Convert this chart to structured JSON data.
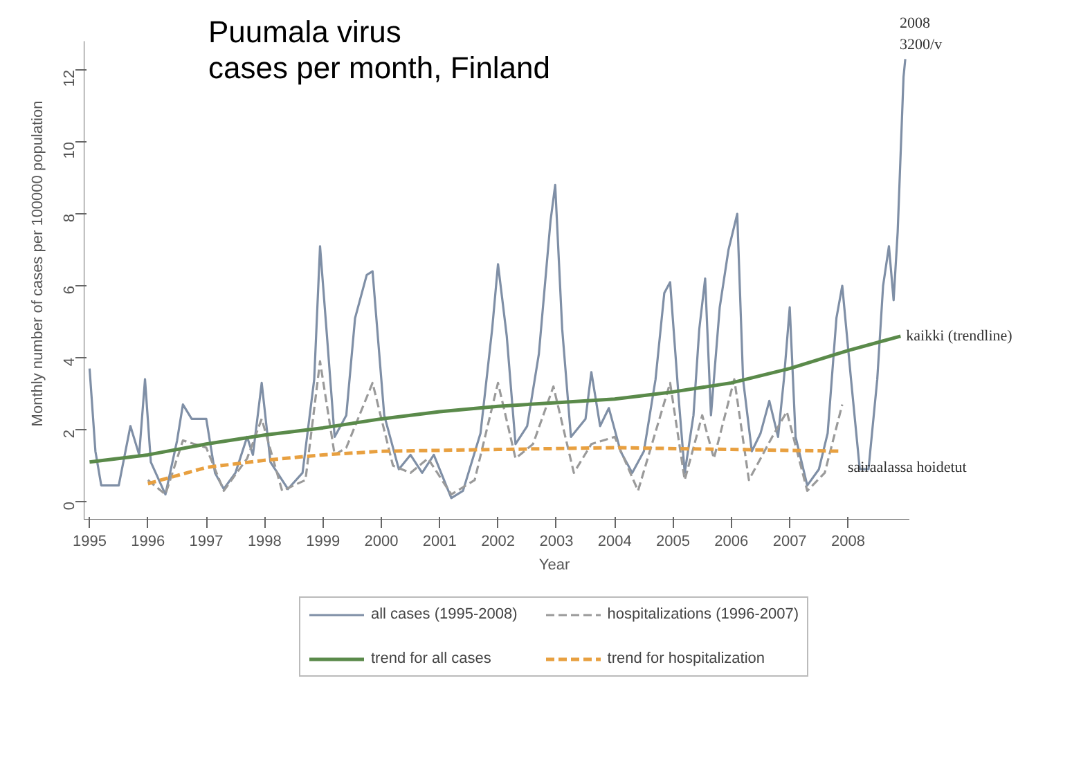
{
  "chart_data": {
    "type": "line",
    "title": "Puumala virus\ncases per month, Finland",
    "xlabel": "Year",
    "ylabel": "Monthly number of cases per 100000 population",
    "xlim": [
      1994.9,
      2009.05
    ],
    "ylim": [
      -0.5,
      12.8
    ],
    "xticks": [
      1995,
      1996,
      1997,
      1998,
      1999,
      2000,
      2001,
      2002,
      2003,
      2004,
      2005,
      2006,
      2007,
      2008
    ],
    "yticks": [
      0,
      2,
      4,
      6,
      8,
      10,
      12
    ],
    "grid": false,
    "legend": "bottom",
    "series": [
      {
        "name": "all cases (1995-2008)",
        "color": "#7f8fa6",
        "line_style": "solid",
        "x": [
          1995.0,
          1995.1,
          1995.2,
          1995.5,
          1995.7,
          1995.85,
          1995.95,
          1996.05,
          1996.3,
          1996.5,
          1996.6,
          1996.75,
          1997.0,
          1997.15,
          1997.3,
          1997.5,
          1997.7,
          1997.8,
          1997.95,
          1998.1,
          1998.4,
          1998.65,
          1998.85,
          1998.95,
          1999.05,
          1999.2,
          1999.4,
          1999.55,
          1999.75,
          1999.85,
          2000.05,
          2000.3,
          2000.5,
          2000.7,
          2000.9,
          2001.2,
          2001.4,
          2001.7,
          2001.9,
          2002.0,
          2002.15,
          2002.3,
          2002.5,
          2002.7,
          2002.9,
          2002.98,
          2003.1,
          2003.25,
          2003.5,
          2003.6,
          2003.75,
          2003.9,
          2004.1,
          2004.3,
          2004.5,
          2004.7,
          2004.85,
          2004.95,
          2005.1,
          2005.2,
          2005.35,
          2005.45,
          2005.55,
          2005.65,
          2005.8,
          2005.95,
          2006.1,
          2006.2,
          2006.35,
          2006.5,
          2006.65,
          2006.8,
          2006.9,
          2007.0,
          2007.1,
          2007.3,
          2007.5,
          2007.65,
          2007.8,
          2007.9,
          2008.05,
          2008.2,
          2008.35,
          2008.5,
          2008.6,
          2008.7,
          2008.78,
          2008.85,
          2008.95,
          2008.98
        ],
        "values": [
          3.7,
          1.4,
          0.45,
          0.45,
          2.1,
          1.3,
          3.4,
          1.1,
          0.2,
          1.7,
          2.7,
          2.3,
          2.3,
          0.8,
          0.35,
          0.8,
          1.8,
          1.3,
          3.3,
          1.1,
          0.35,
          0.8,
          3.4,
          7.1,
          5.0,
          1.8,
          2.4,
          5.1,
          6.3,
          6.4,
          2.4,
          0.9,
          1.3,
          0.8,
          1.3,
          0.1,
          0.3,
          1.9,
          4.8,
          6.6,
          4.6,
          1.6,
          2.1,
          4.1,
          7.8,
          8.8,
          4.8,
          1.8,
          2.3,
          3.6,
          2.1,
          2.6,
          1.4,
          0.8,
          1.4,
          3.4,
          5.8,
          6.1,
          2.8,
          0.8,
          2.4,
          4.8,
          6.2,
          2.4,
          5.4,
          7.0,
          8.0,
          3.4,
          1.4,
          1.9,
          2.8,
          1.8,
          3.4,
          5.4,
          1.8,
          0.45,
          0.9,
          1.9,
          5.1,
          6.0,
          3.4,
          0.9,
          0.9,
          3.4,
          6.0,
          7.1,
          5.6,
          7.5,
          11.8,
          12.3
        ]
      },
      {
        "name": "hospitalizations (1996-2007)",
        "color": "#9a9a9a",
        "line_style": "dashed",
        "x": [
          1996.0,
          1996.3,
          1996.6,
          1997.0,
          1997.3,
          1997.7,
          1997.95,
          1998.3,
          1998.7,
          1998.95,
          1999.2,
          1999.4,
          1999.85,
          2000.2,
          2000.5,
          2000.8,
          2001.2,
          2001.6,
          2002.0,
          2002.3,
          2002.6,
          2002.95,
          2003.3,
          2003.6,
          2004.0,
          2004.4,
          2004.95,
          2005.2,
          2005.5,
          2005.7,
          2006.05,
          2006.3,
          2006.7,
          2006.95,
          2007.3,
          2007.6,
          2007.9
        ],
        "values": [
          0.6,
          0.2,
          1.7,
          1.5,
          0.3,
          1.2,
          2.3,
          0.3,
          0.6,
          3.9,
          1.3,
          1.5,
          3.3,
          1.0,
          0.8,
          1.2,
          0.2,
          0.6,
          3.3,
          1.2,
          1.6,
          3.2,
          0.8,
          1.6,
          1.8,
          0.3,
          3.3,
          0.6,
          2.4,
          1.2,
          3.4,
          0.6,
          1.8,
          2.5,
          0.3,
          0.8,
          2.7
        ]
      },
      {
        "name": "trend for all cases",
        "color": "#5a8a4a",
        "line_style": "solid",
        "x": [
          1995.0,
          1996.0,
          1997.0,
          1998.0,
          1999.0,
          2000.0,
          2001.0,
          2002.0,
          2003.0,
          2004.0,
          2005.0,
          2006.0,
          2007.0,
          2008.0,
          2008.9
        ],
        "values": [
          1.1,
          1.3,
          1.6,
          1.85,
          2.05,
          2.3,
          2.5,
          2.65,
          2.75,
          2.85,
          3.05,
          3.3,
          3.7,
          4.2,
          4.6
        ]
      },
      {
        "name": "trend for hospitalization",
        "color": "#e8a040",
        "line_style": "dashed",
        "x": [
          1996.0,
          1997.0,
          1998.0,
          1999.0,
          2000.0,
          2002.0,
          2004.0,
          2006.0,
          2007.9
        ],
        "values": [
          0.5,
          0.95,
          1.15,
          1.3,
          1.4,
          1.45,
          1.5,
          1.45,
          1.4
        ]
      }
    ],
    "annotations": [
      {
        "text": "2008\n3200/v",
        "x": 2008.98,
        "y": 12.3
      },
      {
        "text": "kaikki (trendline)",
        "x": 2008.9,
        "y": 4.6
      },
      {
        "text": "sairaalassa hoidetut",
        "x": 2007.9,
        "y": 1.4
      }
    ]
  }
}
